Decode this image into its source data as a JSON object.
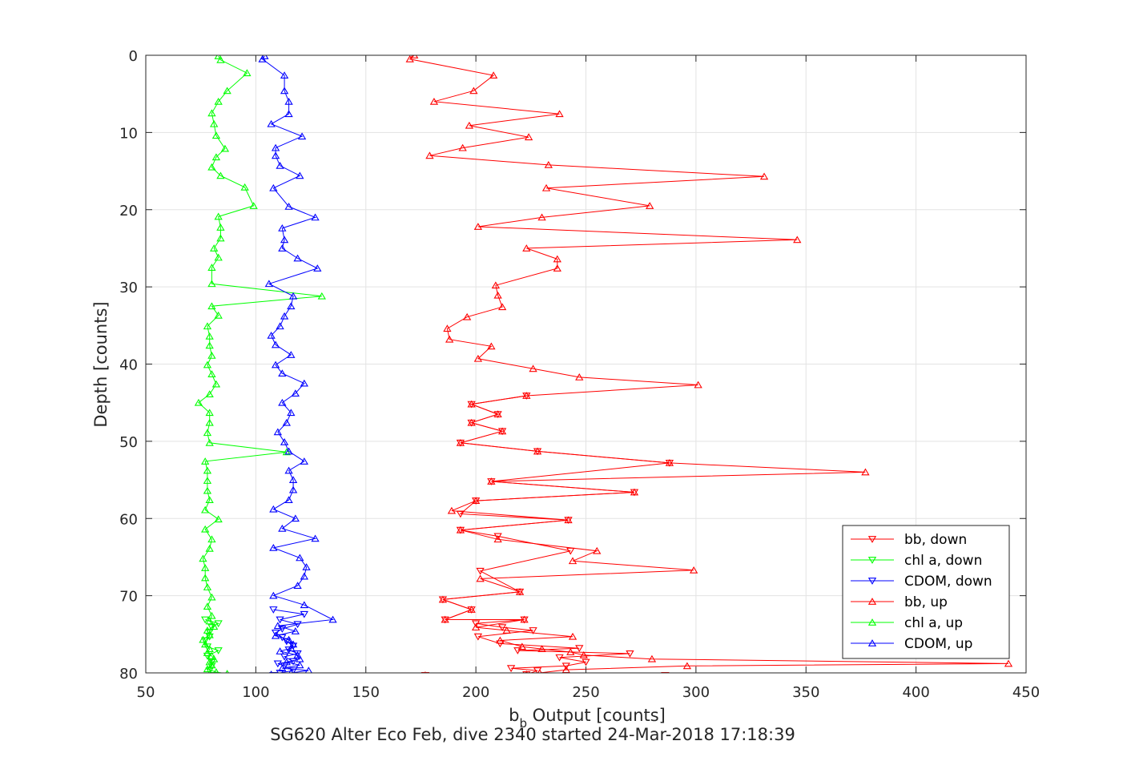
{
  "chart_data": {
    "type": "line",
    "title": "",
    "xlabel_main": "b",
    "xlabel_sub": "b",
    "xlabel_rest": " Output [counts]",
    "ylabel": "Depth [counts]",
    "caption": "SG620 Alter Eco Feb, dive 2340 started 24-Mar-2018 17:18:39",
    "xlim": [
      50,
      450
    ],
    "ylim": [
      0,
      80
    ],
    "y_reversed": true,
    "xticks": [
      "50",
      "100",
      "150",
      "200",
      "250",
      "300",
      "350",
      "400",
      "450"
    ],
    "yticks": [
      "0",
      "10",
      "20",
      "30",
      "40",
      "50",
      "60",
      "70",
      "80"
    ],
    "grid": true,
    "legend_position": "bottom-right",
    "series": [
      {
        "name": "bb, down",
        "color": "#ff0000",
        "marker": "triangle-down",
        "points": [
          [
            286,
            80.3
          ],
          [
            177,
            80.3
          ],
          [
            223,
            80.2
          ],
          [
            228,
            79.7
          ],
          [
            216,
            79.4
          ],
          [
            241,
            79.1
          ],
          [
            250,
            78.6
          ],
          [
            238,
            78.0
          ],
          [
            270,
            77.5
          ],
          [
            219,
            77.1
          ],
          [
            247,
            76.8
          ],
          [
            211,
            76.2
          ],
          [
            201,
            75.3
          ],
          [
            226,
            74.5
          ],
          [
            212,
            74.1
          ],
          [
            200,
            73.6
          ],
          [
            222,
            73.1
          ],
          [
            186,
            73.1
          ],
          [
            198,
            71.8
          ],
          [
            185,
            70.5
          ],
          [
            220,
            69.5
          ],
          [
            202,
            66.8
          ],
          [
            243,
            64.2
          ],
          [
            210,
            62.3
          ],
          [
            193,
            61.5
          ],
          [
            242,
            60.2
          ],
          [
            193,
            59.4
          ],
          [
            200,
            57.7
          ],
          [
            272,
            56.6
          ],
          [
            207,
            55.2
          ],
          [
            288,
            52.8
          ],
          [
            228,
            51.3
          ],
          [
            193,
            50.2
          ],
          [
            212,
            48.7
          ],
          [
            198,
            47.6
          ],
          [
            210,
            46.5
          ],
          [
            198,
            45.2
          ],
          [
            223,
            44.1
          ]
        ]
      },
      {
        "name": "chl a, down",
        "color": "#00ff00",
        "marker": "triangle-down",
        "points": [
          [
            81,
            80.3
          ],
          [
            79,
            79.7
          ],
          [
            80,
            79.1
          ],
          [
            80,
            78.6
          ],
          [
            78,
            77.8
          ],
          [
            83,
            77.1
          ],
          [
            78,
            76.6
          ],
          [
            77,
            75.8
          ],
          [
            79,
            75.3
          ],
          [
            79,
            74.7
          ],
          [
            80,
            74.1
          ],
          [
            83,
            73.6
          ],
          [
            77,
            73.1
          ]
        ]
      },
      {
        "name": "CDOM, down",
        "color": "#0000ff",
        "marker": "triangle-down",
        "points": [
          [
            108,
            80.3
          ],
          [
            111,
            80.0
          ],
          [
            117,
            79.7
          ],
          [
            113,
            79.1
          ],
          [
            110,
            78.8
          ],
          [
            117,
            78.5
          ],
          [
            113,
            77.9
          ],
          [
            119,
            77.5
          ],
          [
            115,
            77.0
          ],
          [
            117,
            76.5
          ],
          [
            114,
            75.9
          ],
          [
            112,
            75.4
          ],
          [
            109,
            74.8
          ],
          [
            112,
            74.3
          ],
          [
            119,
            73.7
          ],
          [
            111,
            73.1
          ],
          [
            122,
            72.4
          ],
          [
            108,
            71.8
          ]
        ]
      },
      {
        "name": "bb, up",
        "color": "#ff0000",
        "marker": "triangle-up",
        "points": [
          [
            172,
            0
          ],
          [
            170,
            0.5
          ],
          [
            208,
            2.6
          ],
          [
            199,
            4.6
          ],
          [
            181,
            6.0
          ],
          [
            238,
            7.6
          ],
          [
            197,
            9.1
          ],
          [
            224,
            10.6
          ],
          [
            194,
            12.0
          ],
          [
            179,
            13.0
          ],
          [
            233,
            14.2
          ],
          [
            331,
            15.7
          ],
          [
            232,
            17.2
          ],
          [
            279,
            19.5
          ],
          [
            230,
            21.0
          ],
          [
            201,
            22.2
          ],
          [
            346,
            23.9
          ],
          [
            223,
            25.0
          ],
          [
            237,
            26.4
          ],
          [
            237,
            27.6
          ],
          [
            209,
            29.8
          ],
          [
            210,
            31.1
          ],
          [
            212,
            32.6
          ],
          [
            196,
            33.9
          ],
          [
            187,
            35.4
          ],
          [
            188,
            36.8
          ],
          [
            207,
            37.7
          ],
          [
            201,
            39.3
          ],
          [
            226,
            40.6
          ],
          [
            247,
            41.7
          ],
          [
            301,
            42.7
          ],
          [
            223,
            44.1
          ],
          [
            198,
            45.2
          ],
          [
            210,
            46.5
          ],
          [
            198,
            47.6
          ],
          [
            212,
            48.7
          ],
          [
            193,
            50.2
          ],
          [
            228,
            51.3
          ],
          [
            288,
            52.8
          ],
          [
            377,
            54.0
          ],
          [
            207,
            55.2
          ],
          [
            272,
            56.6
          ],
          [
            200,
            57.7
          ],
          [
            189,
            59.0
          ],
          [
            242,
            60.2
          ],
          [
            193,
            61.5
          ],
          [
            210,
            62.7
          ],
          [
            255,
            64.2
          ],
          [
            244,
            65.5
          ],
          [
            299,
            66.7
          ],
          [
            202,
            67.8
          ],
          [
            220,
            69.5
          ],
          [
            185,
            70.5
          ],
          [
            198,
            71.8
          ],
          [
            186,
            73.1
          ],
          [
            222,
            73.1
          ],
          [
            200,
            74.1
          ],
          [
            214,
            74.5
          ],
          [
            244,
            75.3
          ],
          [
            211,
            75.8
          ],
          [
            221,
            76.6
          ],
          [
            230,
            76.9
          ],
          [
            243,
            77.3
          ],
          [
            249,
            77.7
          ],
          [
            280,
            78.2
          ],
          [
            442,
            78.8
          ],
          [
            296,
            79.1
          ],
          [
            241,
            79.6
          ],
          [
            229,
            80.0
          ],
          [
            223,
            80.2
          ],
          [
            177,
            80.3
          ]
        ]
      },
      {
        "name": "chl a, up",
        "color": "#00ff00",
        "marker": "triangle-up",
        "points": [
          [
            83,
            0.1
          ],
          [
            84,
            0.6
          ],
          [
            96,
            2.3
          ],
          [
            87,
            4.6
          ],
          [
            83,
            6.0
          ],
          [
            80,
            7.5
          ],
          [
            81,
            8.9
          ],
          [
            82,
            10.4
          ],
          [
            86,
            12.1
          ],
          [
            82,
            13.2
          ],
          [
            80,
            14.5
          ],
          [
            84,
            15.6
          ],
          [
            95,
            17.1
          ],
          [
            99,
            19.5
          ],
          [
            83,
            20.9
          ],
          [
            84,
            22.3
          ],
          [
            84,
            23.7
          ],
          [
            81,
            25.0
          ],
          [
            83,
            26.2
          ],
          [
            80,
            27.5
          ],
          [
            80,
            29.6
          ],
          [
            130,
            31.2
          ],
          [
            80,
            32.5
          ],
          [
            83,
            33.7
          ],
          [
            78,
            35.1
          ],
          [
            79,
            36.4
          ],
          [
            79,
            37.6
          ],
          [
            80,
            38.9
          ],
          [
            78,
            40.1
          ],
          [
            80,
            41.3
          ],
          [
            82,
            42.6
          ],
          [
            79,
            43.9
          ],
          [
            74,
            45.0
          ],
          [
            79,
            46.3
          ],
          [
            79,
            47.6
          ],
          [
            78,
            48.9
          ],
          [
            79,
            50.2
          ],
          [
            114,
            51.4
          ],
          [
            77,
            52.6
          ],
          [
            78,
            53.8
          ],
          [
            78,
            55.1
          ],
          [
            78,
            56.4
          ],
          [
            79,
            57.6
          ],
          [
            77,
            58.9
          ],
          [
            83,
            60.1
          ],
          [
            77,
            61.4
          ],
          [
            80,
            62.7
          ],
          [
            79,
            63.9
          ],
          [
            76,
            65.2
          ],
          [
            77,
            66.4
          ],
          [
            77,
            67.7
          ],
          [
            78,
            68.9
          ],
          [
            80,
            70.2
          ],
          [
            78,
            71.4
          ],
          [
            80,
            72.6
          ],
          [
            79,
            73.3
          ],
          [
            81,
            74.0
          ],
          [
            78,
            74.5
          ],
          [
            79,
            75.1
          ],
          [
            76,
            75.7
          ],
          [
            77,
            76.3
          ],
          [
            79,
            76.9
          ],
          [
            78,
            77.4
          ],
          [
            80,
            77.8
          ],
          [
            81,
            78.2
          ],
          [
            79,
            78.6
          ],
          [
            80,
            79.0
          ],
          [
            78,
            79.5
          ],
          [
            82,
            79.9
          ],
          [
            87,
            80.1
          ]
        ]
      },
      {
        "name": "CDOM, up",
        "color": "#0000ff",
        "marker": "triangle-up",
        "points": [
          [
            104,
            0.1
          ],
          [
            103,
            0.5
          ],
          [
            113,
            2.6
          ],
          [
            113,
            4.6
          ],
          [
            115,
            6.0
          ],
          [
            115,
            7.6
          ],
          [
            107,
            8.9
          ],
          [
            121,
            10.5
          ],
          [
            109,
            12.0
          ],
          [
            109,
            13.0
          ],
          [
            111,
            14.3
          ],
          [
            120,
            15.6
          ],
          [
            108,
            17.2
          ],
          [
            115,
            19.6
          ],
          [
            127,
            21.0
          ],
          [
            112,
            22.4
          ],
          [
            113,
            23.9
          ],
          [
            112,
            25.0
          ],
          [
            119,
            26.3
          ],
          [
            128,
            27.6
          ],
          [
            106,
            29.6
          ],
          [
            117,
            31.2
          ],
          [
            116,
            32.5
          ],
          [
            113,
            33.8
          ],
          [
            111,
            35.1
          ],
          [
            107,
            36.3
          ],
          [
            109,
            37.5
          ],
          [
            116,
            38.8
          ],
          [
            109,
            40.1
          ],
          [
            112,
            41.2
          ],
          [
            122,
            42.5
          ],
          [
            118,
            43.8
          ],
          [
            112,
            45.0
          ],
          [
            116,
            46.3
          ],
          [
            114,
            47.6
          ],
          [
            110,
            48.8
          ],
          [
            113,
            50.1
          ],
          [
            115,
            51.3
          ],
          [
            122,
            52.6
          ],
          [
            115,
            53.8
          ],
          [
            117,
            55.0
          ],
          [
            117,
            56.3
          ],
          [
            115,
            57.6
          ],
          [
            108,
            58.8
          ],
          [
            118,
            60.0
          ],
          [
            112,
            61.3
          ],
          [
            127,
            62.6
          ],
          [
            108,
            63.8
          ],
          [
            120,
            65.1
          ],
          [
            123,
            66.3
          ],
          [
            122,
            67.5
          ],
          [
            119,
            68.7
          ],
          [
            108,
            70.0
          ],
          [
            122,
            71.2
          ],
          [
            135,
            73.1
          ],
          [
            110,
            73.9
          ],
          [
            118,
            74.6
          ],
          [
            109,
            75.2
          ],
          [
            115,
            75.7
          ],
          [
            117,
            76.3
          ],
          [
            116,
            76.8
          ],
          [
            111,
            77.2
          ],
          [
            119,
            77.7
          ],
          [
            120,
            78.2
          ],
          [
            114,
            78.6
          ],
          [
            120,
            79.0
          ],
          [
            112,
            79.4
          ],
          [
            124,
            79.7
          ],
          [
            116,
            80.0
          ],
          [
            107,
            80.2
          ]
        ]
      }
    ]
  }
}
